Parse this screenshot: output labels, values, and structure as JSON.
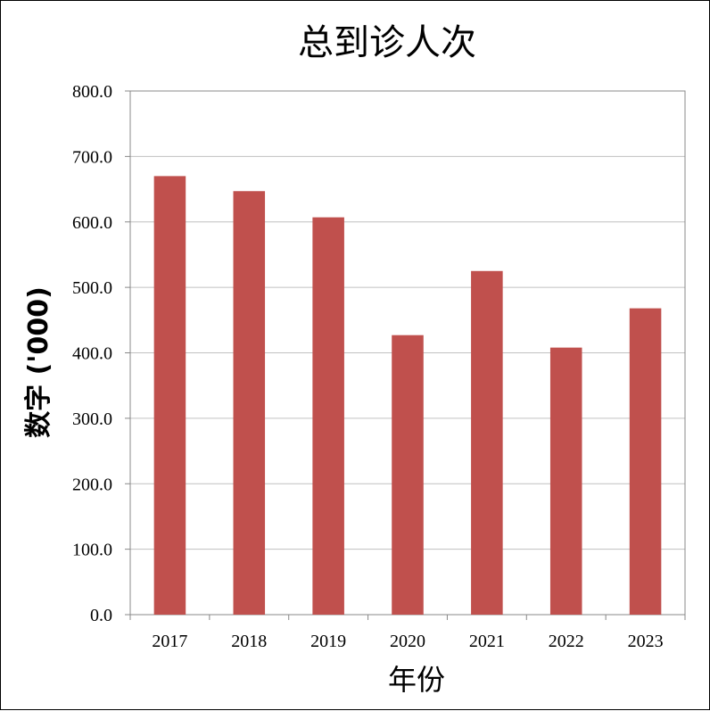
{
  "chart_data": {
    "type": "bar",
    "title": "总到诊人次",
    "xlabel": "年份",
    "ylabel": "数字 ('000)",
    "categories": [
      "2017",
      "2018",
      "2019",
      "2020",
      "2021",
      "2022",
      "2023"
    ],
    "values": [
      670.0,
      647.0,
      607.0,
      427.0,
      525.0,
      408.0,
      468.0
    ],
    "ylim": [
      0,
      800
    ],
    "yticks": [
      "0.0",
      "100.0",
      "200.0",
      "300.0",
      "400.0",
      "500.0",
      "600.0",
      "700.0",
      "800.0"
    ],
    "grid": true,
    "legend": "none",
    "bar_color": "#c0504d"
  }
}
